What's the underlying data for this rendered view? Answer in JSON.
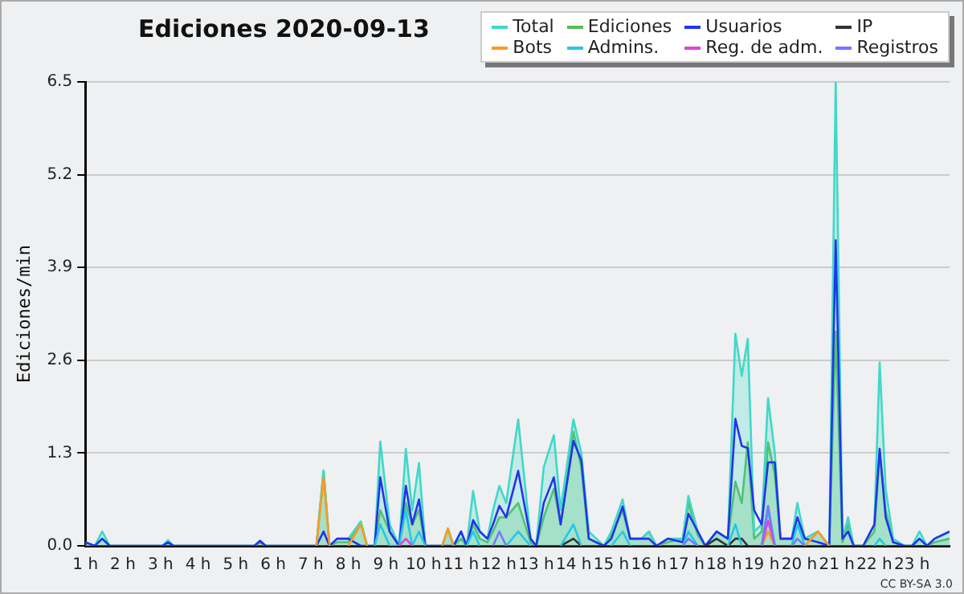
{
  "chart_data": {
    "type": "line",
    "title": "Ediciones 2020-09-13",
    "ylabel": "Ediciones/min",
    "annotations": [
      "CC BY-SA 3.0"
    ],
    "x": [
      1,
      1.25,
      1.45,
      1.65,
      3.05,
      3.2,
      3.35,
      5.5,
      5.65,
      5.8,
      7.15,
      7.34,
      7.5,
      7.7,
      8.0,
      8.33,
      8.5,
      8.7,
      8.85,
      9.1,
      9.35,
      9.53,
      9.7,
      9.88,
      10.05,
      10.5,
      10.65,
      10.8,
      11.0,
      11.15,
      11.32,
      11.5,
      11.7,
      11.85,
      12.02,
      12.2,
      12.52,
      12.85,
      13.0,
      13.2,
      13.47,
      13.65,
      13.99,
      14.2,
      14.4,
      14.6,
      14.8,
      15.0,
      15.3,
      15.5,
      15.8,
      16.0,
      16.2,
      16.5,
      16.9,
      17.05,
      17.3,
      17.5,
      17.8,
      18.1,
      18.3,
      18.47,
      18.63,
      18.8,
      19.0,
      19.17,
      19.35,
      19.5,
      19.8,
      19.95,
      20.15,
      20.5,
      20.8,
      20.97,
      21.15,
      21.3,
      21.45,
      21.7,
      22.0,
      22.14,
      22.3,
      22.5,
      22.8,
      23.0,
      23.2,
      23.4,
      23.6,
      24
    ],
    "series": [
      {
        "name": "Total",
        "type": "area",
        "color": "#40d8c8",
        "values": [
          0.05,
          0,
          0.2,
          0,
          0,
          0.08,
          0,
          0,
          0.07,
          0,
          0,
          1.05,
          0,
          0.1,
          0.1,
          0.34,
          0,
          0,
          1.46,
          0.3,
          0,
          1.36,
          0.5,
          1.16,
          0,
          0,
          0.24,
          0,
          0.2,
          0,
          0.77,
          0.2,
          0.1,
          0.5,
          0.84,
          0.6,
          1.77,
          0.1,
          0,
          1.1,
          1.55,
          0.5,
          1.77,
          1.3,
          0.2,
          0.1,
          0,
          0.2,
          0.65,
          0.1,
          0.1,
          0.2,
          0,
          0.1,
          0.1,
          0.7,
          0.2,
          0,
          0.2,
          0.1,
          2.97,
          2.38,
          2.9,
          0.2,
          0.3,
          2.07,
          1.3,
          0.1,
          0.1,
          0.6,
          0.1,
          0.2,
          0,
          6.5,
          0.1,
          0.4,
          0,
          0,
          0.3,
          2.57,
          0.8,
          0.1,
          0,
          0,
          0.2,
          0,
          0.1,
          0.2
        ]
      },
      {
        "name": "Ediciones",
        "type": "area",
        "color": "#55bb55",
        "values": [
          0,
          0,
          0.1,
          0,
          0,
          0.05,
          0,
          0,
          0.05,
          0,
          0,
          1.05,
          0,
          0.05,
          0.05,
          0.34,
          0,
          0,
          0.5,
          0.2,
          0,
          0.6,
          0.3,
          0.5,
          0,
          0,
          0.24,
          0,
          0.1,
          0,
          0.3,
          0.1,
          0.05,
          0.2,
          0.4,
          0.4,
          0.6,
          0.05,
          0,
          0.4,
          0.8,
          0.3,
          1.6,
          1.1,
          0.1,
          0.05,
          0,
          0.15,
          0.5,
          0.1,
          0.1,
          0.2,
          0,
          0.05,
          0.1,
          0.6,
          0.15,
          0,
          0.2,
          0.1,
          0.9,
          0.6,
          1.45,
          0.1,
          0.2,
          1.45,
          1.0,
          0.1,
          0.1,
          0.3,
          0.1,
          0.2,
          0,
          3.0,
          0.05,
          0.3,
          0,
          0,
          0.2,
          1.3,
          0.5,
          0.05,
          0,
          0,
          0.1,
          0,
          0.05,
          0.1
        ]
      },
      {
        "name": "Usuarios",
        "type": "line",
        "color": "#2233ee",
        "values": [
          0.05,
          0,
          0.1,
          0,
          0,
          0.05,
          0,
          0,
          0.07,
          0,
          0,
          0.2,
          0,
          0.1,
          0.1,
          0,
          0,
          0,
          0.96,
          0.2,
          0,
          0.84,
          0.3,
          0.65,
          0,
          0,
          0,
          0,
          0.2,
          0,
          0.36,
          0.2,
          0.1,
          0.3,
          0.56,
          0.4,
          1.05,
          0.1,
          0,
          0.6,
          0.96,
          0.3,
          1.47,
          1.2,
          0.1,
          0.05,
          0,
          0.1,
          0.55,
          0.1,
          0.1,
          0.1,
          0,
          0.1,
          0.05,
          0.45,
          0.2,
          0,
          0.2,
          0.1,
          1.78,
          1.4,
          1.37,
          0.5,
          0.3,
          1.17,
          1.17,
          0.1,
          0.1,
          0.4,
          0.1,
          0.05,
          0,
          4.28,
          0.1,
          0.2,
          0,
          0,
          0.3,
          1.36,
          0.4,
          0.05,
          0,
          0,
          0.1,
          0,
          0.1,
          0.2
        ]
      },
      {
        "name": "IP",
        "type": "line",
        "color": "#333333",
        "values": [
          null,
          null,
          null,
          null,
          null,
          null,
          null,
          null,
          null,
          null,
          null,
          null,
          null,
          null,
          null,
          null,
          null,
          null,
          null,
          null,
          null,
          null,
          null,
          null,
          null,
          null,
          null,
          null,
          null,
          null,
          null,
          null,
          null,
          null,
          null,
          null,
          null,
          null,
          null,
          null,
          null,
          0,
          0.1,
          0,
          null,
          null,
          null,
          null,
          null,
          null,
          null,
          null,
          null,
          null,
          null,
          null,
          null,
          0,
          0.1,
          0,
          0.1,
          0.1,
          0,
          null,
          null,
          null,
          null,
          null,
          null,
          null,
          null,
          null,
          null,
          null,
          null,
          null,
          null,
          null,
          null,
          null,
          null,
          null,
          null,
          null,
          null,
          null,
          null,
          null
        ]
      },
      {
        "name": "Bots",
        "type": "line",
        "color": "#ff9922",
        "values": [
          null,
          null,
          null,
          null,
          null,
          null,
          null,
          null,
          null,
          null,
          0,
          0.95,
          0,
          null,
          0,
          0.3,
          0,
          null,
          null,
          null,
          null,
          null,
          null,
          null,
          null,
          0,
          0.24,
          0,
          null,
          null,
          null,
          null,
          null,
          null,
          null,
          null,
          null,
          null,
          null,
          null,
          null,
          null,
          null,
          null,
          null,
          null,
          null,
          null,
          null,
          null,
          null,
          null,
          null,
          null,
          null,
          null,
          null,
          null,
          null,
          null,
          null,
          null,
          null,
          null,
          0,
          0.2,
          0,
          null,
          null,
          null,
          0,
          0.2,
          0,
          null,
          null,
          null,
          null,
          null,
          null,
          null,
          null,
          null,
          null,
          null,
          null,
          null,
          null,
          null
        ]
      },
      {
        "name": "Admins.",
        "type": "line",
        "color": "#22c8e8",
        "values": [
          null,
          null,
          null,
          null,
          null,
          null,
          null,
          null,
          null,
          null,
          null,
          null,
          null,
          null,
          null,
          null,
          null,
          0,
          0.3,
          0,
          0,
          0.5,
          0,
          0.2,
          0,
          null,
          null,
          null,
          null,
          0,
          0.2,
          0,
          null,
          null,
          null,
          0,
          0.2,
          0,
          null,
          null,
          null,
          0,
          0.3,
          0,
          null,
          null,
          null,
          0,
          0.2,
          0,
          null,
          null,
          null,
          null,
          0,
          0.2,
          0,
          null,
          null,
          0,
          0.3,
          0,
          null,
          null,
          0,
          0.5,
          0,
          null,
          0,
          0.3,
          0,
          null,
          null,
          null,
          null,
          null,
          null,
          null,
          0,
          0.1,
          0,
          null,
          null,
          null,
          null,
          null,
          null,
          null
        ]
      },
      {
        "name": "Reg. de adm.",
        "type": "line",
        "color": "#dd44dd",
        "values": [
          null,
          null,
          null,
          null,
          null,
          null,
          null,
          null,
          null,
          null,
          null,
          null,
          null,
          null,
          null,
          null,
          null,
          null,
          null,
          null,
          0,
          0.1,
          0,
          null,
          null,
          null,
          null,
          null,
          null,
          null,
          null,
          null,
          null,
          null,
          null,
          null,
          null,
          null,
          null,
          null,
          null,
          null,
          null,
          null,
          null,
          null,
          null,
          null,
          null,
          null,
          null,
          null,
          null,
          null,
          null,
          null,
          null,
          null,
          null,
          null,
          null,
          null,
          null,
          null,
          0,
          0.35,
          0,
          null,
          null,
          null,
          null,
          null,
          null,
          null,
          null,
          null,
          null,
          null,
          null,
          null,
          null,
          null,
          null,
          null,
          null,
          null,
          null,
          null
        ]
      },
      {
        "name": "Registros",
        "type": "line",
        "color": "#7777ff",
        "values": [
          null,
          null,
          null,
          null,
          null,
          null,
          null,
          null,
          null,
          null,
          null,
          null,
          null,
          null,
          null,
          null,
          null,
          null,
          null,
          null,
          null,
          null,
          null,
          null,
          null,
          null,
          null,
          null,
          null,
          null,
          null,
          null,
          null,
          0,
          0.2,
          0,
          null,
          null,
          null,
          null,
          null,
          null,
          null,
          null,
          null,
          null,
          null,
          null,
          null,
          null,
          null,
          null,
          null,
          null,
          0,
          0.1,
          0,
          null,
          null,
          null,
          null,
          null,
          null,
          null,
          0,
          0.56,
          0,
          null,
          0,
          0.1,
          0,
          null,
          null,
          null,
          null,
          null,
          null,
          null,
          null,
          null,
          null,
          null,
          null,
          null,
          null,
          null,
          null,
          null
        ]
      }
    ],
    "xlim": [
      1,
      24
    ],
    "xticks": [
      {
        "value": 1,
        "label": "1 h"
      },
      {
        "value": 2,
        "label": "2 h"
      },
      {
        "value": 3,
        "label": "3 h"
      },
      {
        "value": 4,
        "label": "4 h"
      },
      {
        "value": 5,
        "label": "5 h"
      },
      {
        "value": 6,
        "label": "6 h"
      },
      {
        "value": 7,
        "label": "7 h"
      },
      {
        "value": 8,
        "label": "8 h"
      },
      {
        "value": 9,
        "label": "9 h"
      },
      {
        "value": 10,
        "label": "10 h"
      },
      {
        "value": 11,
        "label": "11 h"
      },
      {
        "value": 12,
        "label": "12 h"
      },
      {
        "value": 13,
        "label": "13 h"
      },
      {
        "value": 14,
        "label": "14 h"
      },
      {
        "value": 15,
        "label": "15 h"
      },
      {
        "value": 16,
        "label": "16 h"
      },
      {
        "value": 17,
        "label": "17 h"
      },
      {
        "value": 18,
        "label": "18 h"
      },
      {
        "value": 19,
        "label": "19 h"
      },
      {
        "value": 20,
        "label": "20 h"
      },
      {
        "value": 21,
        "label": "21 h"
      },
      {
        "value": 22,
        "label": "22 h"
      },
      {
        "value": 23,
        "label": "23 h"
      }
    ],
    "ylim": [
      0,
      6.5
    ],
    "yticks": [
      {
        "value": 0,
        "label": "0.0"
      },
      1.3,
      2.6,
      3.9,
      5.2,
      6.5
    ],
    "grid": "y",
    "legend": "top right",
    "marker": "none",
    "line_style": "solid"
  }
}
